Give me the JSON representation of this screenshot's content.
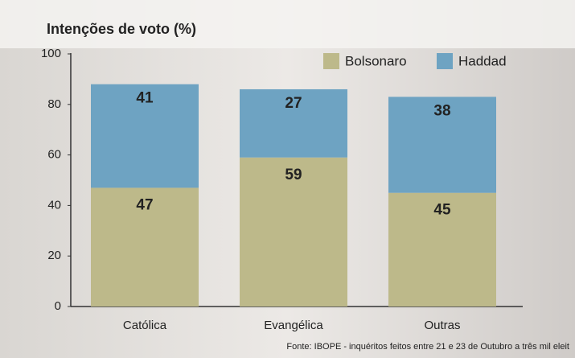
{
  "chart_data": {
    "type": "stacked-bar",
    "title": "Intenções de voto (%)",
    "categories": [
      "Católica",
      "Evangélica",
      "Outras"
    ],
    "series": [
      {
        "name": "Bolsonaro",
        "color": "#bdb98a",
        "values": [
          47,
          59,
          45
        ]
      },
      {
        "name": "Haddad",
        "color": "#6ea3c2",
        "values": [
          41,
          27,
          38
        ]
      }
    ],
    "ylim": [
      0,
      100
    ],
    "yticks": [
      0,
      20,
      40,
      60,
      80,
      100
    ],
    "legend": "top-right",
    "source": "Fonte: IBOPE - inquéritos feitos entre 21 e 23 de Outubro a três mil eleit"
  }
}
